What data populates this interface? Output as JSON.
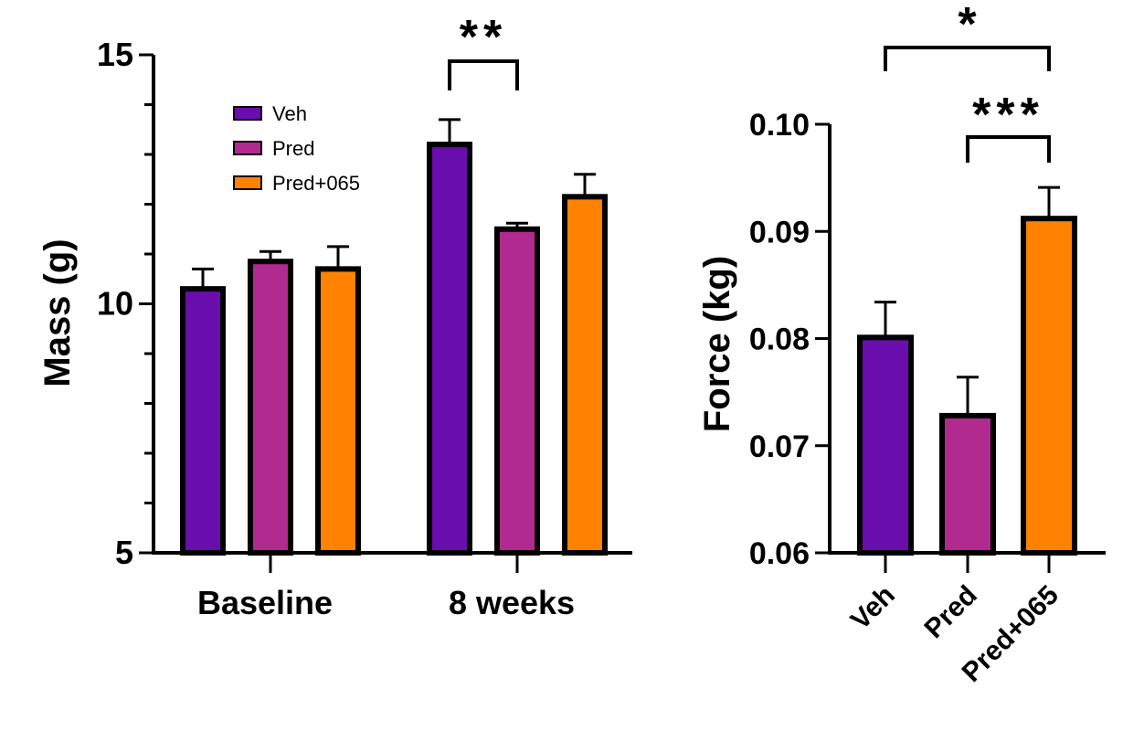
{
  "colors": {
    "veh": "#6a0dad",
    "pred": "#b02a8f",
    "pred065": "#ff8200",
    "axis": "#000000"
  },
  "chart_data": [
    {
      "type": "bar",
      "title": "",
      "xlabel": "",
      "ylabel": "Mass (g)",
      "ylim": [
        5,
        15
      ],
      "yticks_major": [
        "5",
        "10",
        "15"
      ],
      "categories": [
        "Baseline",
        "8 weeks"
      ],
      "series": [
        {
          "name": "Veh",
          "color_key": "veh",
          "values": [
            10.3,
            13.2
          ],
          "errors": [
            0.4,
            0.5
          ]
        },
        {
          "name": "Pred",
          "color_key": "pred",
          "values": [
            10.85,
            11.5
          ],
          "errors": [
            0.2,
            0.12
          ]
        },
        {
          "name": "Pred+065",
          "color_key": "pred065",
          "values": [
            10.7,
            12.15
          ],
          "errors": [
            0.45,
            0.45
          ]
        }
      ],
      "legend": {
        "placement": "top-left",
        "entries": [
          "Veh",
          "Pred",
          "Pred+065"
        ]
      },
      "significance": [
        {
          "label": "**",
          "category": "8 weeks",
          "between": [
            "Veh",
            "Pred"
          ]
        }
      ],
      "grid": false
    },
    {
      "type": "bar",
      "title": "",
      "xlabel": "",
      "ylabel": "Force (kg)",
      "ylim": [
        0.06,
        0.1
      ],
      "yticks_major": [
        "0.06",
        "0.07",
        "0.08",
        "0.09",
        "0.10"
      ],
      "categories": [
        "Veh",
        "Pred",
        "Pred+065"
      ],
      "values": [
        0.0801,
        0.0728,
        0.0912
      ],
      "errors": [
        0.0033,
        0.0036,
        0.0029
      ],
      "color_keys": [
        "veh",
        "pred",
        "pred065"
      ],
      "significance": [
        {
          "label": "*",
          "between": [
            "Veh",
            "Pred+065"
          ]
        },
        {
          "label": "***",
          "between": [
            "Pred",
            "Pred+065"
          ]
        }
      ],
      "grid": false
    }
  ]
}
